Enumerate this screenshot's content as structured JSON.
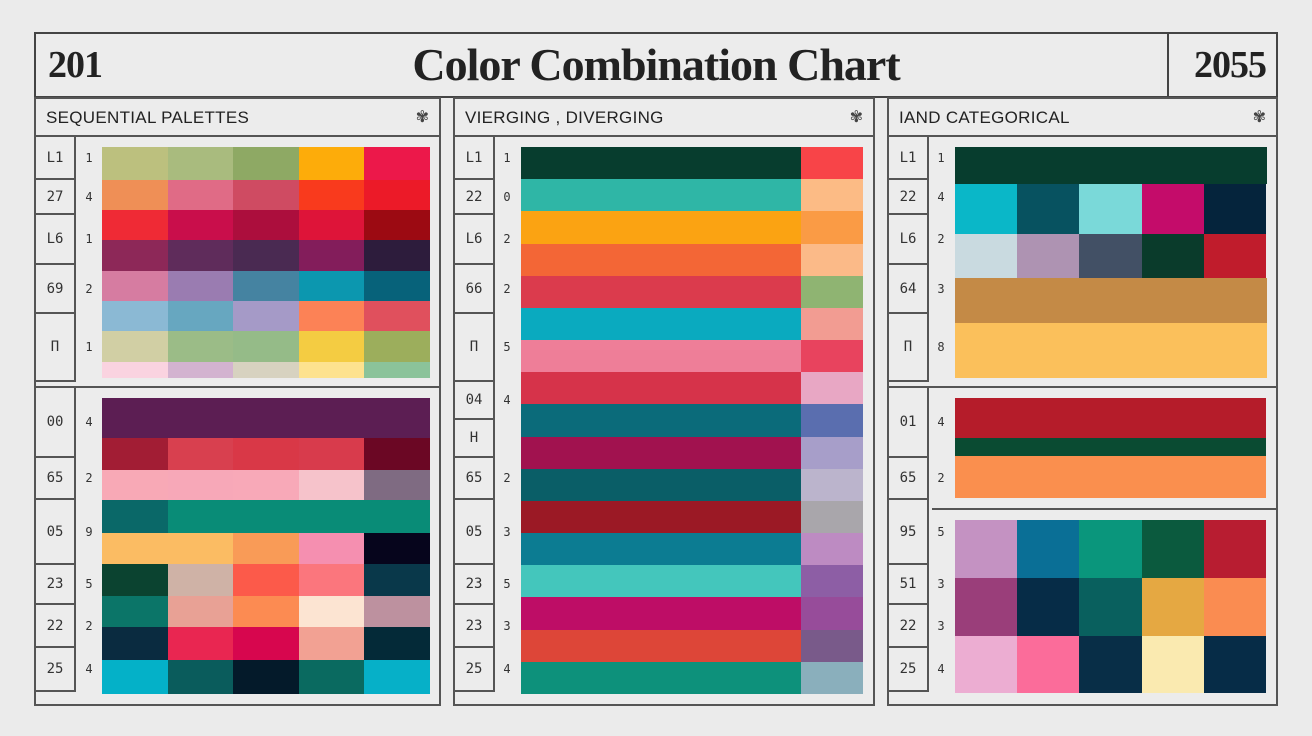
{
  "header": {
    "year_left": "201",
    "title": "Color Combination Chart",
    "year_right": "2055"
  },
  "panels": [
    {
      "title": "SEQUENTIAL PALETTES",
      "gear_icon": "✾"
    },
    {
      "title": "VIERGING , DIVERGING",
      "gear_icon": "✾"
    },
    {
      "title": "IAND CATEGORICAL",
      "gear_icon": "✾"
    }
  ],
  "left_top_rows": [
    "L1",
    "27",
    "L6",
    "69",
    "П"
  ],
  "left_top_counts": [
    "1",
    "4",
    "1",
    "2",
    "1"
  ],
  "left_bottom_rows": [
    "00",
    "65",
    "05",
    "23",
    "22",
    "25"
  ],
  "left_bottom_counts": [
    "4",
    "2",
    "9",
    "5",
    "2",
    "4"
  ],
  "mid_rows": [
    "L1",
    "22",
    "L6",
    "66",
    "П",
    "04",
    "H",
    "65",
    "05",
    "23",
    "23",
    "25"
  ],
  "mid_counts": [
    "1",
    "0",
    "2",
    "2",
    "5",
    "4",
    "",
    "2",
    "3",
    "5",
    "3",
    "4"
  ],
  "right_top_rows": [
    "L1",
    "22",
    "L6",
    "64",
    "П"
  ],
  "right_top_counts": [
    "1",
    "4",
    "2",
    "3",
    "8"
  ],
  "right_bottom_rows": [
    "01",
    "65",
    "95",
    "51",
    "22",
    "25"
  ],
  "right_bottom_counts": [
    "4",
    "2",
    "5",
    "3",
    "3",
    "4"
  ],
  "palette_colors": {
    "seq_top": [
      [
        "#bcc07e",
        "#a9bb7e",
        "#8ea964",
        "#fdac0a",
        "#ec184a"
      ],
      [
        "#ef8f56",
        "#e06b86",
        "#cf4b62",
        "#f93a1d",
        "#ec1a28"
      ],
      [
        "#ef2a35",
        "#c90e4b",
        "#ac0e3d",
        "#de1439",
        "#9c0a12"
      ],
      [
        "#8d2858",
        "#5f2c5b",
        "#4a2a52",
        "#831d5b",
        "#2d1c3c"
      ],
      [
        "#d67ca1",
        "#9a7cb1",
        "#4583a1",
        "#0c97af",
        "#07627a"
      ],
      [
        "#8bb9d4",
        "#67a7c0",
        "#a59ac7",
        "#fc8256",
        "#e0505d"
      ],
      [
        "#d1cfa4",
        "#9bbc87",
        "#95bb88",
        "#f4cc42",
        "#9cae5c"
      ],
      [
        "#fad3e0",
        "#d3b3d0",
        "#d7d2c0",
        "#fde28f",
        "#8bc39a"
      ]
    ],
    "seq_bottom": [
      [
        "#5c1e53"
      ],
      [
        "#a21d34",
        "#d8404f",
        "#d93847",
        "#d83b4c",
        "#6b0724"
      ],
      [
        "#f8a9b6",
        "#f7a8b8",
        "#f8a9b8",
        "#f6c3cb",
        "#7f6b82"
      ],
      [
        "#0a6868",
        "#098c77"
      ],
      [
        "#fbbc63",
        "#fbbc63",
        "#f99b57",
        "#f58fb0",
        "#06051c"
      ],
      [
        "#0b4330",
        "#cfb2a6",
        "#fc5a4a",
        "#fb767d",
        "#09384a"
      ],
      [
        "#0b7568",
        "#e8a195",
        "#fc8b52",
        "#fce4d2",
        "#bd919f"
      ],
      [
        "#0a2b40",
        "#e92651",
        "#d7064e",
        "#f2a193",
        "#042a38"
      ],
      [
        "#04b1c8",
        "#0a5c5c",
        "#041a2a",
        "#0a6a60",
        "#06b0c8"
      ]
    ],
    "mid_left": [
      "#073d2e",
      "#2fb6a6",
      "#fba312",
      "#f36636",
      "#db3b4d",
      "#0aaabf",
      "#ee7e98",
      "#d6334a",
      "#0b6b7a",
      "#a1124f",
      "#0a5e67",
      "#9b1925",
      "#0c7c92",
      "#44c6bc",
      "#be0d66",
      "#dd4638",
      "#0d917b"
    ],
    "mid_right": [
      "#f84448",
      "#fcbb85",
      "#fa9b45",
      "#fbba88",
      "#8fb472",
      "#f29c92",
      "#e8435e",
      "#e8a7c4",
      "#5a6eaf",
      "#a79ec9",
      "#bbb4cc",
      "#a9a6ab",
      "#bd8bc2",
      "#8d5ea5",
      "#974c9a",
      "#795a8a",
      "#8aafbc"
    ],
    "cat_top": [
      [
        "#073d2e"
      ],
      [
        "#0ab7c8",
        "#075260",
        "#7ad9d9",
        "#c40c6a",
        "#05243c"
      ],
      [
        "#c9dae0",
        "#ae93b2",
        "#425065",
        "#0a3b2b",
        "#c01c2c"
      ],
      [
        "#c48a46"
      ],
      [
        "#fbc05b"
      ]
    ],
    "cat_bottom_top": [
      "#b51c2a",
      "#0a4b32",
      "#fa8f4e"
    ],
    "cat_bottom": [
      [
        "#c492c2",
        "#0a6f96",
        "#0a967c",
        "#0b5a3e",
        "#b81d31"
      ],
      [
        "#9a3e7a",
        "#062c47",
        "#09605e",
        "#e5a842",
        "#fa8c51"
      ],
      [
        "#ecadd2",
        "#fb6c9a",
        "#082e47",
        "#faeab0",
        "#062c47"
      ]
    ]
  }
}
